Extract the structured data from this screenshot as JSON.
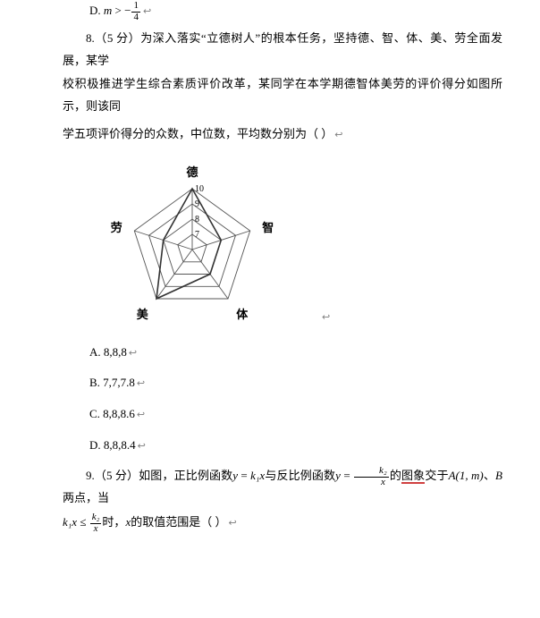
{
  "q7": {
    "optD_prefix": "D. ",
    "optD_var": "m",
    "optD_op": " > −",
    "optD_frac_num": "1",
    "optD_frac_den": "4"
  },
  "q8": {
    "prefix": "8.（5 分）",
    "body1": "为深入落实“立德树人”的根本任务，坚持德、智、体、美、劳全面发展，某学",
    "body2": "校积极推进学生综合素质评价改革，某同学在本学期德智体美劳的评价得分如图所示，则该同",
    "body3": "学五项评价得分的众数，中位数，平均数分别为（  ）",
    "chart": {
      "labels": {
        "de": "德",
        "zhi": "智",
        "ti": "体",
        "mei": "美",
        "lao": "劳"
      },
      "radial_ticks": [
        "10",
        "9",
        "8",
        "7"
      ],
      "n_axes": 5,
      "levels": 4,
      "data_vals": [
        1.0,
        0.5,
        0.5,
        1.0,
        0.5
      ],
      "colors": {
        "line": "#555555",
        "data_line": "#333333",
        "label": "#000000"
      }
    },
    "options": {
      "A": "A. 8,8,8",
      "B": "B. 7,7,7.8",
      "C": "C. 8,8,8.6",
      "D": "D. 8,8,8.4"
    }
  },
  "q9": {
    "prefix": "9.（5 分）如图，正比例函数",
    "mid1_a": " = ",
    "mid1_var_y": "y",
    "mid1_var_k1x": "k₁x",
    "mid2": "与反比例函数",
    "mid3_y": "y",
    "mid3_eq": " = ",
    "mid3_frac_num": "k₂",
    "mid3_frac_den": "x",
    "mid4": "的",
    "mid4_u": "图象",
    "mid5": "交于",
    "mid5_A": "A(1, m)",
    "mid6": "、",
    "mid6_B": "B",
    "mid7": " 两点，当",
    "line2_a": "k₁x",
    "line2_le": " ≤ ",
    "line2_frac_num": "k₂",
    "line2_frac_den": "x",
    "line2_b": "时，",
    "line2_c": "x",
    "line2_d": "的取值范围是（  ）"
  },
  "return_char": "↩"
}
